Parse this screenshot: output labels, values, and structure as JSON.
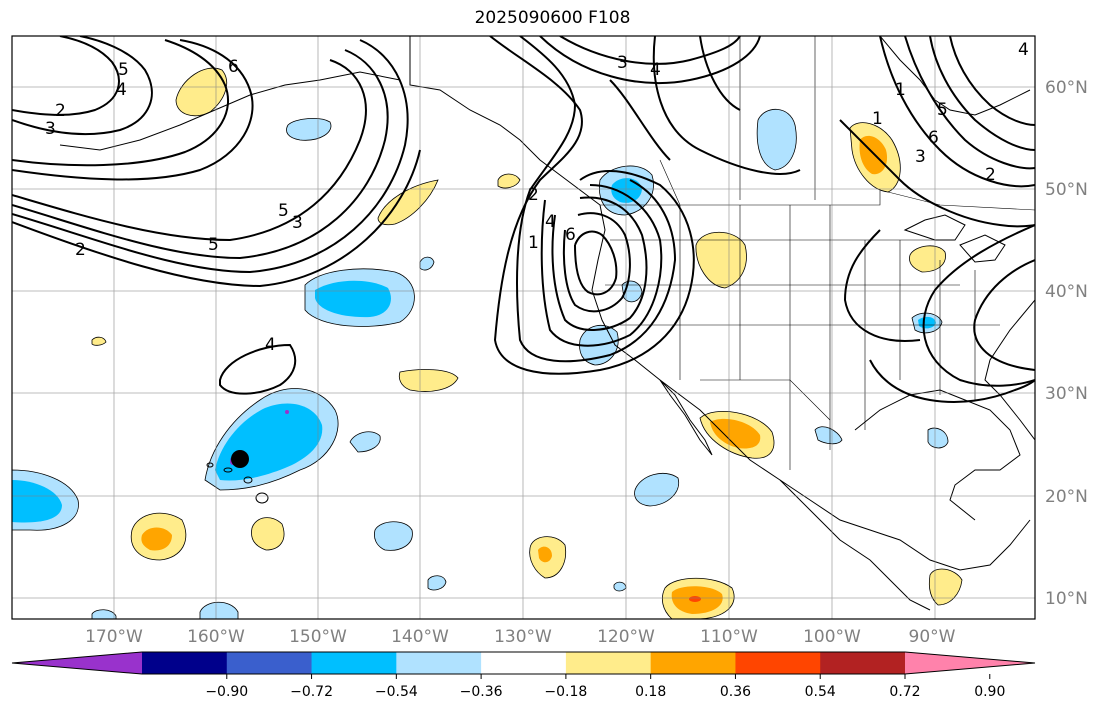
{
  "title": "2025090600 F108",
  "lon_labels": [
    "170°W",
    "160°W",
    "150°W",
    "140°W",
    "130°W",
    "120°W",
    "110°W",
    "100°W",
    "90°W"
  ],
  "lat_labels": [
    "60°N",
    "50°N",
    "40°N",
    "30°N",
    "20°N",
    "10°N"
  ],
  "colorbar": {
    "colors": [
      "#9932cc",
      "#00008b",
      "#3a5fcd",
      "#00bfff",
      "#b0e2ff",
      "#ffffff",
      "#ffec8b",
      "#ffa500",
      "#ff4500",
      "#b22222",
      "#ff82ab"
    ],
    "tick_labels": [
      "−0.90",
      "−0.72",
      "−0.54",
      "−0.36",
      "−0.18",
      "0.18",
      "0.36",
      "0.54",
      "0.72",
      "0.90"
    ]
  },
  "contour_labels": [
    "2",
    "3",
    "5",
    "4",
    "6",
    "5",
    "3",
    "2",
    "4",
    "1",
    "5",
    "4",
    "2",
    "3",
    "4",
    "6",
    "1",
    "1",
    "3",
    "2",
    "5",
    "6",
    "4"
  ],
  "marker": "station-dot"
}
